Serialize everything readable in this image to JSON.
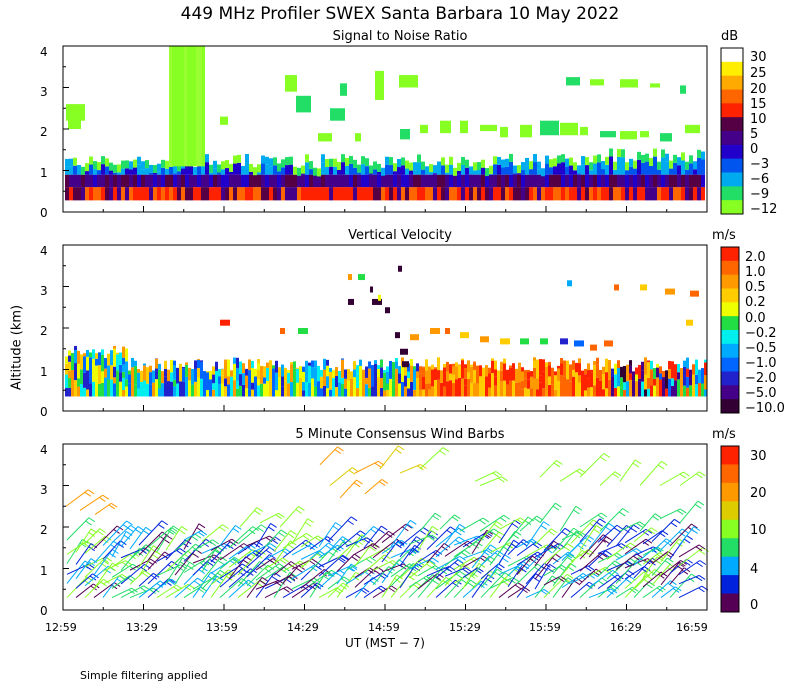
{
  "title": "449 MHz Profiler SWEX Santa Barbara 10 May 2022",
  "footer": "Simple filtering applied",
  "x_axis": {
    "label": "UT  (MST − 7)",
    "ticks": [
      "12:59",
      "13:29",
      "13:59",
      "14:29",
      "14:59",
      "15:29",
      "15:59",
      "16:29",
      "16:59"
    ]
  },
  "y_axis": {
    "label": "Altitude (km)"
  },
  "colors": {
    "snr": [
      "#88ff22",
      "#22dd66",
      "#00aaee",
      "#0055ee",
      "#2200cc",
      "#440088",
      "#550044",
      "#ff2200",
      "#ff6600",
      "#ffaa00",
      "#ffee00",
      "#ffffff"
    ],
    "vel": [
      "#330033",
      "#440088",
      "#2222cc",
      "#0066ff",
      "#00aaff",
      "#00eeee",
      "#22dd44",
      "#eeff00",
      "#ffcc00",
      "#ff9900",
      "#ff6600",
      "#ff2200"
    ],
    "wind": [
      "#550055",
      "#0022dd",
      "#00aaff",
      "#22dd66",
      "#88ff22",
      "#ddcc00",
      "#ff9900",
      "#ff6600",
      "#ff2200"
    ]
  },
  "chart_data": [
    {
      "type": "heatmap",
      "title": "Signal to Noise Ratio",
      "units": "dB",
      "xlabel": "UT  (MST − 7)",
      "ylabel": "Altitude (km)",
      "xlim": [
        "12:59",
        "16:59"
      ],
      "ylim": [
        0,
        4
      ],
      "yticks": [
        "0",
        "1",
        "2",
        "3",
        "4"
      ],
      "colorbar_labels": [
        "30",
        "25",
        "20",
        "15",
        "10",
        "5",
        "0",
        "−3",
        "−6",
        "−9",
        "−12"
      ]
    },
    {
      "type": "heatmap",
      "title": "Vertical Velocity",
      "units": "m/s",
      "xlabel": "UT  (MST − 7)",
      "ylabel": "Altitude (km)",
      "xlim": [
        "12:59",
        "16:59"
      ],
      "ylim": [
        0,
        4
      ],
      "yticks": [
        "0",
        "1",
        "2",
        "3",
        "4"
      ],
      "colorbar_labels": [
        "2.0",
        "1.0",
        "0.5",
        "0.2",
        "0.0",
        "−0.2",
        "−0.5",
        "−1.0",
        "−2.0",
        "−5.0",
        "−10.0"
      ]
    },
    {
      "type": "scatter",
      "title": "5 Minute Consensus Wind Barbs",
      "units": "m/s",
      "xlabel": "UT  (MST − 7)",
      "ylabel": "Altitude (km)",
      "xlim": [
        "12:59",
        "16:59"
      ],
      "ylim": [
        0,
        4
      ],
      "yticks": [
        "0",
        "1",
        "2",
        "3",
        "4"
      ],
      "colorbar_labels": [
        "30",
        "20",
        "10",
        "4",
        "0"
      ]
    }
  ]
}
